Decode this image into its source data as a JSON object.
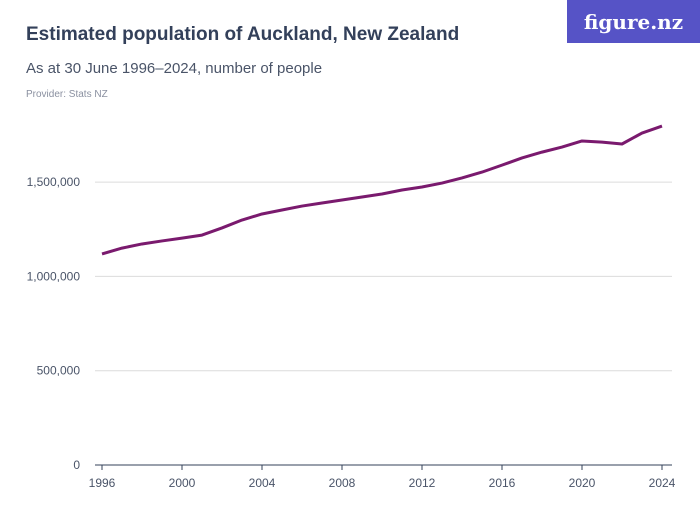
{
  "header": {
    "title": "Estimated population of Auckland, New Zealand",
    "subtitle": "As at 30 June 1996–2024, number of people",
    "provider": "Provider: Stats NZ",
    "logo": "figure.nz"
  },
  "colors": {
    "line": "#7a1a6e",
    "grid": "#dcdcdc",
    "logo_bg": "#5653c6"
  },
  "chart_data": {
    "type": "line",
    "title": "Estimated population of Auckland, New Zealand",
    "subtitle": "As at 30 June 1996–2024, number of people",
    "xlim": [
      1996,
      2024
    ],
    "ylim": [
      0,
      1800000
    ],
    "x_ticks": [
      1996,
      2000,
      2004,
      2008,
      2012,
      2016,
      2020,
      2024
    ],
    "y_ticks": [
      {
        "v": 0,
        "label": "0"
      },
      {
        "v": 500000,
        "label": "500,000"
      },
      {
        "v": 1000000,
        "label": "1,000,000"
      },
      {
        "v": 1500000,
        "label": "1,500,000"
      }
    ],
    "grid": "horizontal",
    "x": [
      1996,
      1997,
      1998,
      1999,
      2000,
      2001,
      2002,
      2003,
      2004,
      2005,
      2006,
      2007,
      2008,
      2009,
      2010,
      2011,
      2012,
      2013,
      2014,
      2015,
      2016,
      2017,
      2018,
      2019,
      2020,
      2021,
      2022,
      2023,
      2024
    ],
    "values": [
      1119000,
      1150000,
      1172000,
      1188000,
      1203000,
      1219000,
      1257000,
      1299000,
      1331000,
      1352000,
      1373000,
      1389000,
      1405000,
      1421000,
      1437000,
      1458000,
      1474000,
      1495000,
      1522000,
      1553000,
      1590000,
      1628000,
      1659000,
      1686000,
      1718000,
      1712000,
      1702000,
      1760000,
      1797000
    ]
  }
}
